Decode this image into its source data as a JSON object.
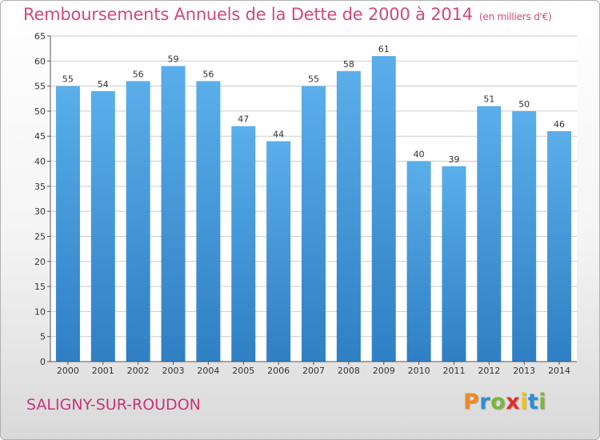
{
  "title": "Remboursements Annuels de la Dette de 2000 à 2014",
  "unit": "(en milliers d'€)",
  "commune": "SALIGNY-SUR-ROUDON",
  "logo": {
    "letters": [
      "P",
      "r",
      "o",
      "x",
      "i",
      "t",
      "i"
    ],
    "colors": [
      "#f08a24",
      "#2a8fd4",
      "#7bb83a",
      "#e2302d",
      "#f0c419",
      "#2a8fd4",
      "#7bb83a"
    ]
  },
  "colors": {
    "bar": "#4a9ee0",
    "bar_dark": "#2f7fc4",
    "title": "#d04a7a",
    "grid": "#cccccc"
  },
  "chart_data": {
    "type": "bar",
    "categories": [
      "2000",
      "2001",
      "2002",
      "2003",
      "2004",
      "2005",
      "2006",
      "2007",
      "2008",
      "2009",
      "2010",
      "2011",
      "2012",
      "2013",
      "2014"
    ],
    "values": [
      55,
      54,
      56,
      59,
      56,
      47,
      44,
      55,
      58,
      61,
      40,
      39,
      51,
      50,
      46
    ],
    "data_labels": [
      "55",
      "54",
      "56",
      "59",
      "56",
      "47",
      "44",
      "55",
      "58",
      "61",
      "40",
      "39",
      "51",
      "50",
      "46"
    ],
    "ylim": [
      0,
      65
    ],
    "yticks": [
      "0",
      "5",
      "10",
      "15",
      "20",
      "25",
      "30",
      "35",
      "40",
      "45",
      "50",
      "55",
      "60",
      "65"
    ],
    "grid": true
  }
}
